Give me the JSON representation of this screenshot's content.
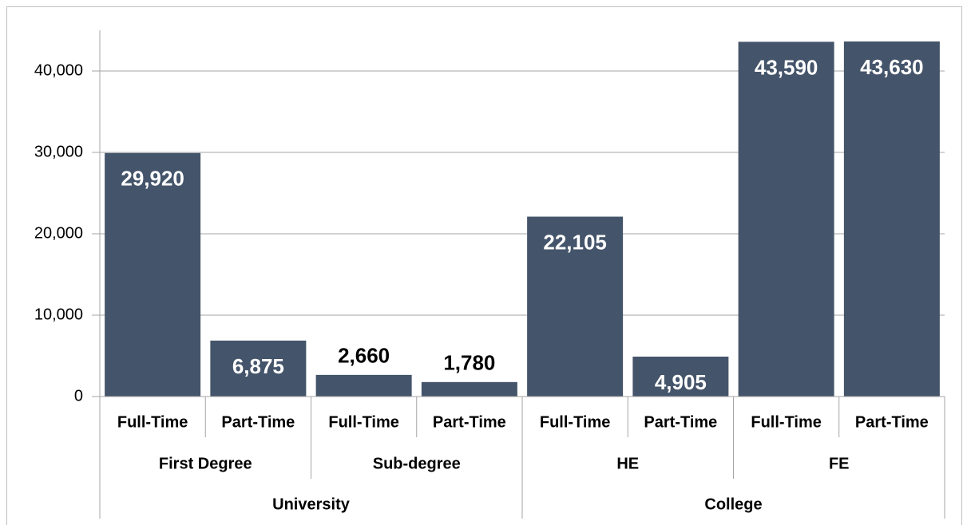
{
  "chart_data": {
    "type": "bar",
    "categories": [
      "Full-Time",
      "Part-Time",
      "Full-Time",
      "Part-Time",
      "Full-Time",
      "Part-Time",
      "Full-Time",
      "Part-Time"
    ],
    "group_levels": [
      [
        "First Degree",
        "Sub-degree",
        "HE",
        "FE"
      ],
      [
        "University",
        "College"
      ]
    ],
    "values": [
      29920,
      6875,
      2660,
      1780,
      22105,
      4905,
      43590,
      43630
    ],
    "value_labels": [
      "29,920",
      "6,875",
      "2,660",
      "1,780",
      "22,105",
      "4,905",
      "43,590",
      "43,630"
    ],
    "color": "#44546a",
    "ylim": [
      0,
      45000
    ],
    "yticks": [
      0,
      {
        "value": 10000,
        "label": "10,000"
      },
      {
        "value": 20000,
        "label": "20,000"
      },
      {
        "value": 30000,
        "label": "30,000"
      },
      {
        "value": 40000,
        "label": "40,000"
      }
    ],
    "grid": true
  }
}
